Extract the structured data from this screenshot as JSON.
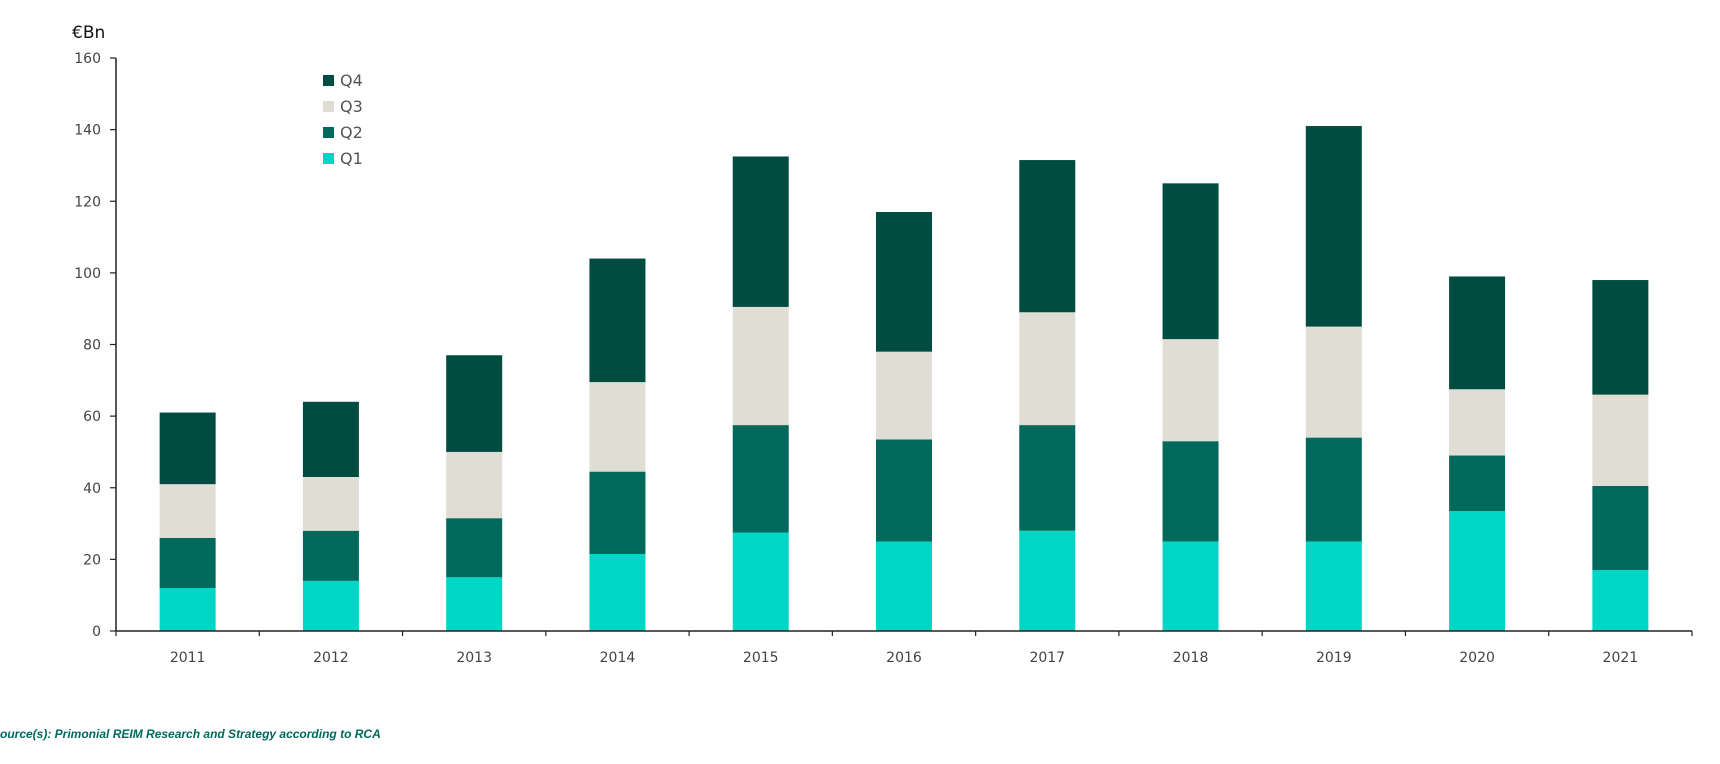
{
  "chart_data": {
    "type": "bar",
    "stacked": true,
    "ylabel": "€Bn",
    "ylim": [
      0,
      160
    ],
    "yticks": [
      0,
      20,
      40,
      60,
      80,
      100,
      120,
      140,
      160
    ],
    "grid": false,
    "legend_position": "top-left",
    "categories": [
      "2011",
      "2012",
      "2013",
      "2014",
      "2015",
      "2016",
      "2017",
      "2018",
      "2019",
      "2020",
      "2021"
    ],
    "series": [
      {
        "name": "Q1",
        "color": "#00D6C6",
        "values": [
          12,
          14,
          15,
          21.5,
          27.5,
          25,
          28,
          25,
          25,
          33.5,
          17
        ]
      },
      {
        "name": "Q2",
        "color": "#00695C",
        "values": [
          14,
          14,
          16.5,
          23,
          30,
          28.5,
          29.5,
          28,
          29,
          15.5,
          23.5
        ]
      },
      {
        "name": "Q3",
        "color": "#E0DDD5",
        "values": [
          15,
          15,
          18.5,
          25,
          33,
          24.5,
          31.5,
          28.5,
          31,
          18.5,
          25.5
        ]
      },
      {
        "name": "Q4",
        "color": "#004C40",
        "values": [
          20,
          21,
          27,
          34.5,
          42,
          39,
          42.5,
          43.5,
          56,
          31.5,
          32
        ]
      }
    ],
    "legend_order": [
      "Q4",
      "Q3",
      "Q2",
      "Q1"
    ]
  },
  "source": "ource(s): Primonial REIM Research and Strategy according to RCA"
}
